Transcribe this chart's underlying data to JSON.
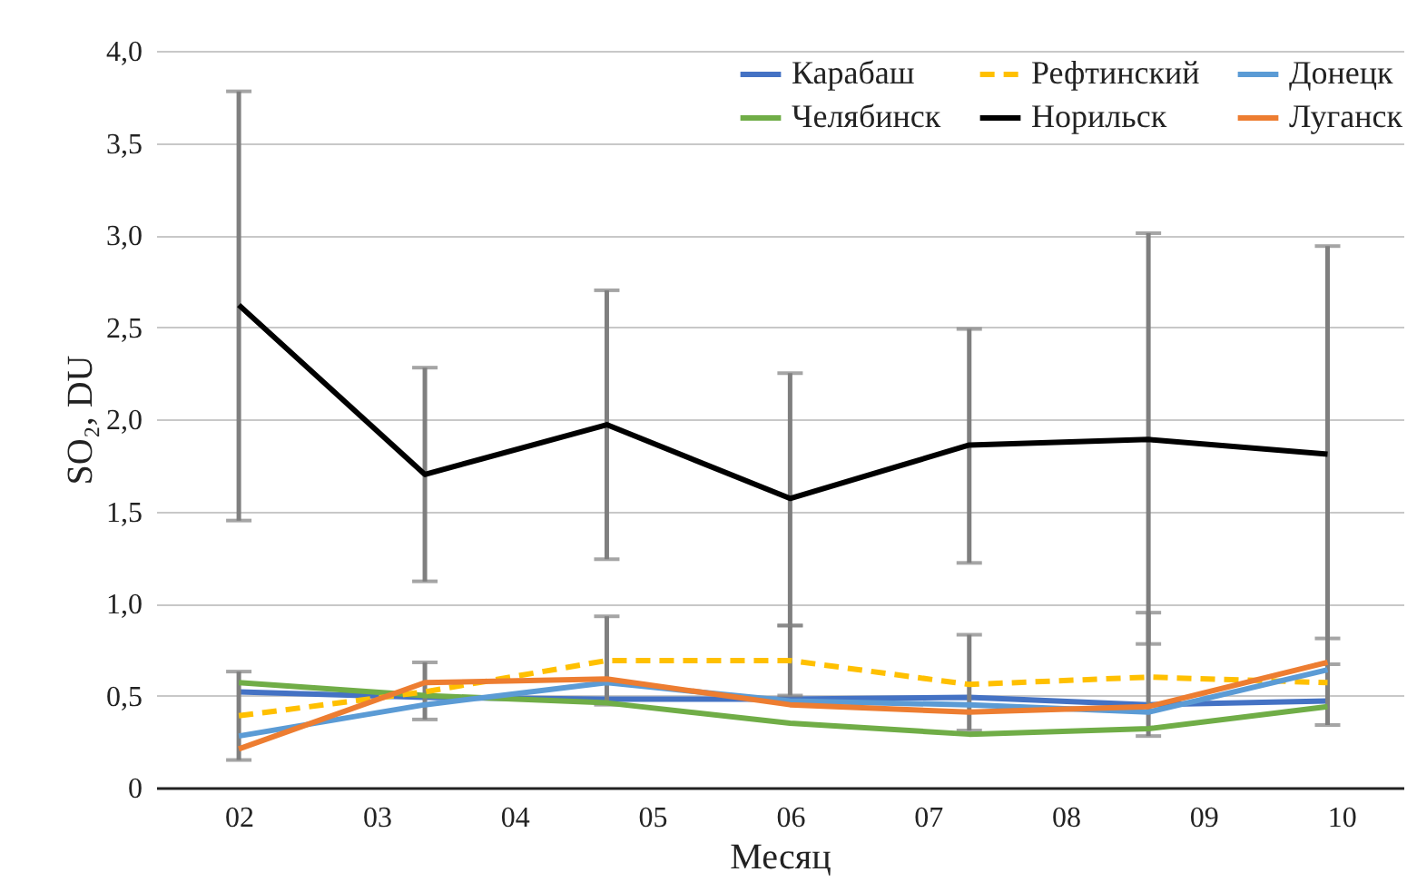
{
  "chart_data": {
    "type": "line",
    "xlabel": "Месяц",
    "ylabel": "SO₂, DU",
    "x": [
      2,
      3.35,
      4.67,
      6,
      7.3,
      8.6,
      9.9
    ],
    "xlim": [
      1.4,
      10.45
    ],
    "xticks": [
      {
        "value": 2,
        "label": "02"
      },
      {
        "value": 3,
        "label": "03"
      },
      {
        "value": 4,
        "label": "04"
      },
      {
        "value": 5,
        "label": "05"
      },
      {
        "value": 6,
        "label": "06"
      },
      {
        "value": 7,
        "label": "07"
      },
      {
        "value": 8,
        "label": "08"
      },
      {
        "value": 9,
        "label": "09"
      },
      {
        "value": 10,
        "label": "10"
      }
    ],
    "ylim": [
      0,
      4
    ],
    "yticks": [
      0,
      {
        "value": 0.5,
        "label": "0,5"
      },
      {
        "value": 1,
        "label": "1,0"
      },
      {
        "value": 1.5,
        "label": "1,5"
      },
      {
        "value": 2,
        "label": "2,0"
      },
      {
        "value": 2.5,
        "label": "2,5"
      },
      {
        "value": 3,
        "label": "3,0"
      },
      {
        "value": 3.5,
        "label": "3,5"
      },
      {
        "value": 4,
        "label": "4,0"
      }
    ],
    "grid": "y",
    "legend": "top right",
    "marker": "none",
    "series": [
      {
        "name": "Карабаш",
        "color": "#4472c4",
        "values": [
          0.52,
          0.49,
          0.48,
          0.48,
          0.49,
          0.45,
          0.47
        ]
      },
      {
        "name": "Челябинск",
        "color": "#70ad47",
        "values": [
          0.57,
          0.5,
          0.46,
          0.35,
          0.29,
          0.32,
          0.44
        ]
      },
      {
        "name": "Рефтинский",
        "color": "#ffc000",
        "line_style": "dashed",
        "values": [
          0.39,
          0.52,
          0.69,
          0.69,
          0.56,
          0.6,
          0.57
        ],
        "errors": [
          [
            0.15,
            0.63
          ],
          [
            0.37,
            0.68
          ],
          [
            0.45,
            0.93
          ],
          [
            0.5,
            0.88
          ],
          [
            0.31,
            0.83
          ],
          [
            0.28,
            0.95
          ],
          [
            0.34,
            0.81
          ]
        ]
      },
      {
        "name": "Норильск",
        "color": "#000000",
        "values": [
          2.62,
          1.7,
          1.97,
          1.57,
          1.86,
          1.89,
          1.81
        ],
        "errors": [
          [
            1.45,
            3.78
          ],
          [
            1.12,
            2.28
          ],
          [
            1.24,
            2.7
          ],
          [
            0.88,
            2.25
          ],
          [
            1.22,
            2.49
          ],
          [
            0.78,
            3.01
          ],
          [
            0.67,
            2.94
          ]
        ]
      },
      {
        "name": "Донецк",
        "color": "#5b9bd5",
        "values": [
          0.28,
          0.45,
          0.57,
          0.47,
          0.45,
          0.41,
          0.64
        ]
      },
      {
        "name": "Луганск",
        "color": "#ed7d31",
        "values": [
          0.21,
          0.57,
          0.59,
          0.45,
          0.41,
          0.44,
          0.68
        ]
      }
    ]
  }
}
